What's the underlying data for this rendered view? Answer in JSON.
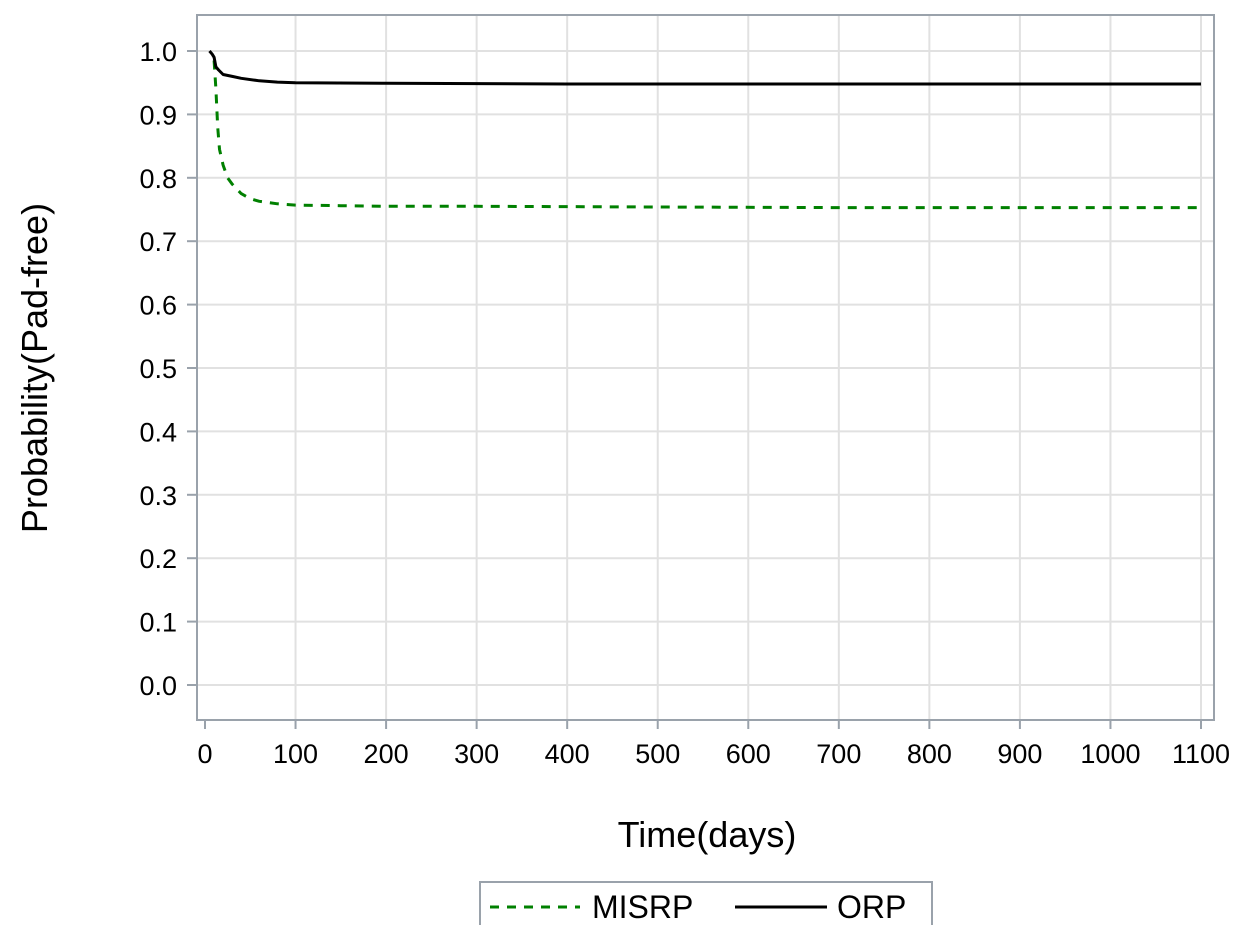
{
  "chart_data": {
    "type": "line",
    "title": "",
    "xlabel": "Time(days)",
    "ylabel": "Probability(Pad-free)",
    "xlim": [
      0,
      1100
    ],
    "ylim": [
      0.0,
      1.0
    ],
    "x_ticks": [
      0,
      100,
      200,
      300,
      400,
      500,
      600,
      700,
      800,
      900,
      1000,
      1100
    ],
    "y_ticks": [
      0.0,
      0.1,
      0.2,
      0.3,
      0.4,
      0.5,
      0.6,
      0.7,
      0.8,
      0.9,
      1.0
    ],
    "x_tick_labels": [
      "0",
      "100",
      "200",
      "300",
      "400",
      "500",
      "600",
      "700",
      "800",
      "900",
      "1000",
      "1100"
    ],
    "y_tick_labels": [
      "0.0",
      "0.1",
      "0.2",
      "0.3",
      "0.4",
      "0.5",
      "0.6",
      "0.7",
      "0.8",
      "0.9",
      "1.0"
    ],
    "grid": true,
    "legend_position": "bottom-center",
    "series": [
      {
        "name": "MISRP",
        "color": "#008000",
        "style": "dashed",
        "points": [
          [
            10,
            0.985
          ],
          [
            12,
            0.94
          ],
          [
            14,
            0.88
          ],
          [
            16,
            0.845
          ],
          [
            20,
            0.82
          ],
          [
            25,
            0.8
          ],
          [
            30,
            0.79
          ],
          [
            40,
            0.775
          ],
          [
            50,
            0.767
          ],
          [
            60,
            0.763
          ],
          [
            80,
            0.759
          ],
          [
            100,
            0.757
          ],
          [
            150,
            0.756
          ],
          [
            200,
            0.755
          ],
          [
            300,
            0.755
          ],
          [
            500,
            0.754
          ],
          [
            700,
            0.753
          ],
          [
            900,
            0.753
          ],
          [
            1100,
            0.753
          ]
        ]
      },
      {
        "name": "ORP",
        "color": "#000000",
        "style": "solid",
        "points": [
          [
            5,
            1.0
          ],
          [
            8,
            0.995
          ],
          [
            10,
            0.99
          ],
          [
            12,
            0.975
          ],
          [
            15,
            0.97
          ],
          [
            20,
            0.963
          ],
          [
            30,
            0.96
          ],
          [
            40,
            0.957
          ],
          [
            60,
            0.953
          ],
          [
            80,
            0.951
          ],
          [
            100,
            0.95
          ],
          [
            200,
            0.949
          ],
          [
            400,
            0.948
          ],
          [
            700,
            0.948
          ],
          [
            1100,
            0.948
          ]
        ]
      }
    ]
  },
  "legend": {
    "items": [
      {
        "label": "MISRP",
        "color": "#008000",
        "style": "dashed"
      },
      {
        "label": "ORP",
        "color": "#000000",
        "style": "solid"
      }
    ]
  }
}
